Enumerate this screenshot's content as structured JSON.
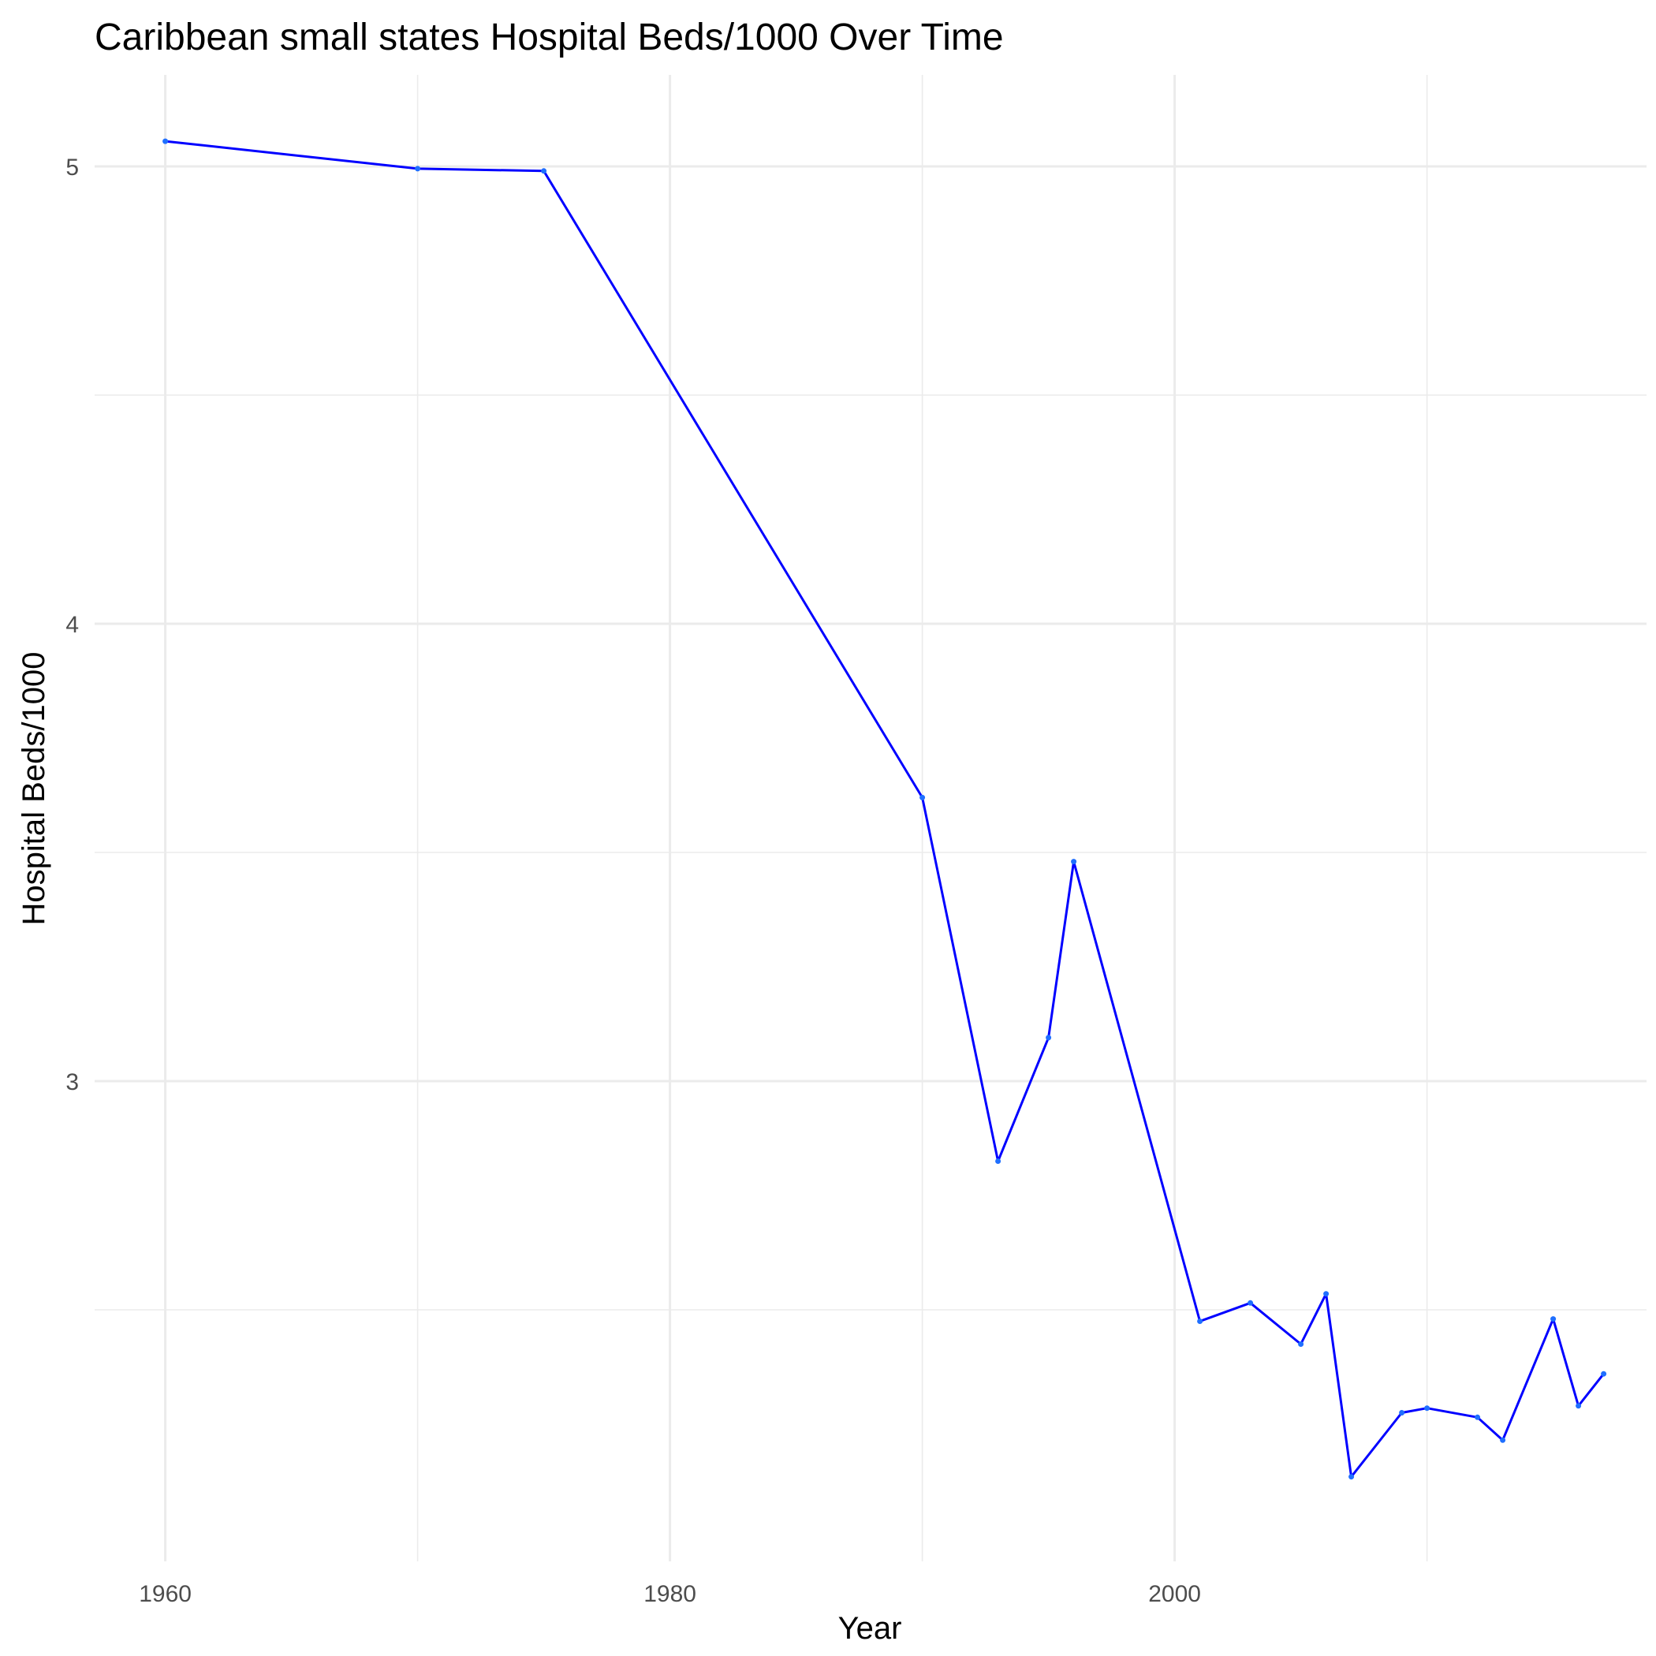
{
  "chart_data": {
    "type": "line",
    "title": "Caribbean small states Hospital Beds/1000 Over Time",
    "xlabel": "Year",
    "ylabel": "Hospital Beds/1000",
    "xlim": [
      1957.2,
      2018.7
    ],
    "ylim": [
      1.95,
      5.2
    ],
    "x_ticks": [
      1960,
      1980,
      2000
    ],
    "x_tick_labels": [
      "1960",
      "1980",
      "2000"
    ],
    "y_ticks": [
      3,
      4,
      5
    ],
    "y_tick_labels": [
      "3",
      "4",
      "5"
    ],
    "grid": true,
    "legend": "none",
    "series": [
      {
        "color": "#0000ff",
        "x": [
          1960,
          1970,
          1975,
          1990,
          1993,
          1995,
          1996,
          2001,
          2003,
          2005,
          2006,
          2007,
          2009,
          2010,
          2012,
          2013,
          2015,
          2016,
          2017
        ],
        "y": [
          5.055,
          4.995,
          4.99,
          3.62,
          2.825,
          3.095,
          3.48,
          2.475,
          2.515,
          2.425,
          2.535,
          2.135,
          2.275,
          2.285,
          2.265,
          2.215,
          2.48,
          2.29,
          2.36
        ]
      }
    ]
  }
}
